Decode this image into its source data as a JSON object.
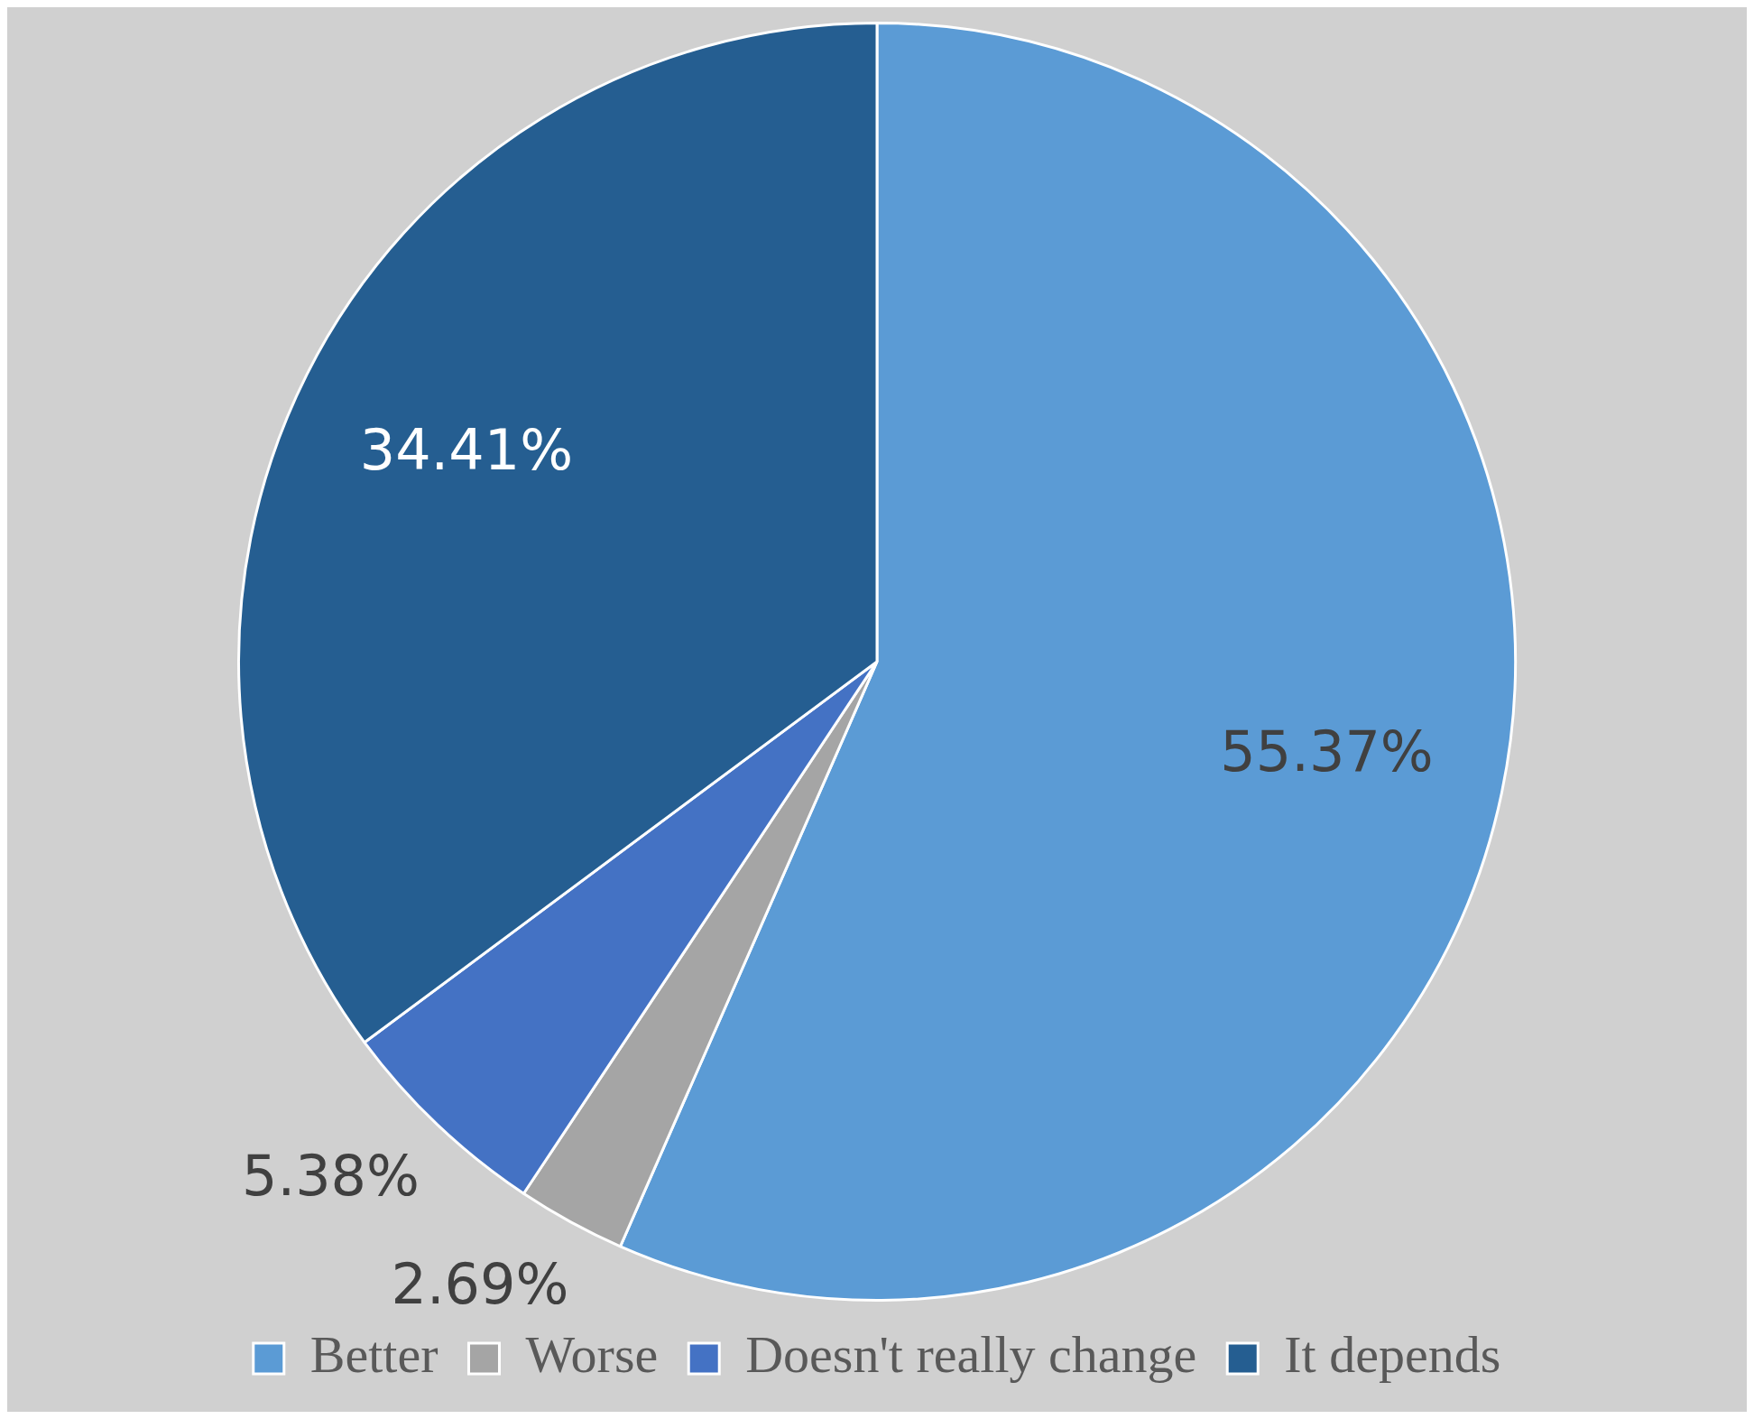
{
  "chart_data": {
    "type": "pie",
    "categories": [
      "Better",
      "Worse",
      "Doesn't really change",
      "It depends"
    ],
    "values": [
      55.37,
      2.69,
      5.38,
      34.41
    ],
    "colors": [
      "#5b9bd5",
      "#a5a5a5",
      "#4472c4",
      "#255e91"
    ],
    "value_labels": [
      "55.37%",
      "2.69%",
      "5.38%",
      "34.41%"
    ],
    "legend": "bottom"
  }
}
